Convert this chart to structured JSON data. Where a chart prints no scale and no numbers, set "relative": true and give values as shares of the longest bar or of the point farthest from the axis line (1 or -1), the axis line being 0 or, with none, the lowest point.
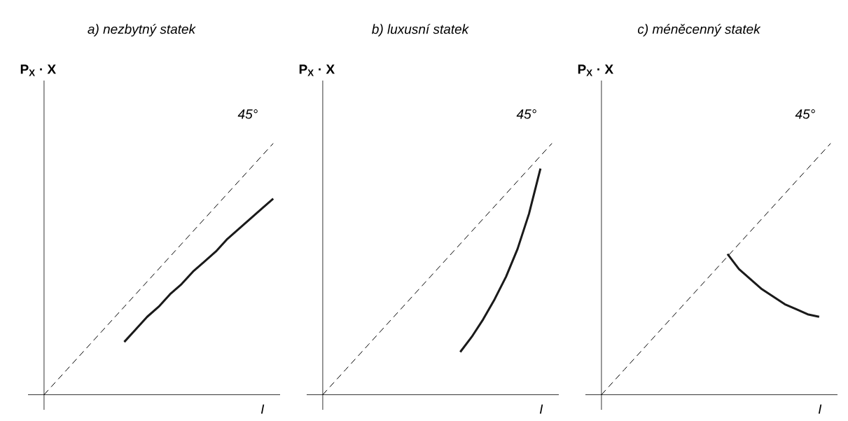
{
  "chart_data": [
    {
      "type": "line",
      "title": "a) nezbytný statek",
      "xlabel": "I",
      "ylabel": "P$_{X}$ · X",
      "relative": true,
      "categories": [
        null,
        null,
        null,
        null,
        null,
        null,
        null,
        null,
        null,
        null,
        null,
        null,
        null,
        null,
        null,
        null,
        null,
        null,
        null,
        null,
        null
      ],
      "series": [
        {
          "color": "#000000",
          "line_style": "dashed",
          "values": [
            0,
            0.05,
            0.1,
            0.15,
            0.2,
            0.25,
            0.3,
            0.35,
            0.4,
            0.45,
            0.5,
            0.55,
            0.6,
            0.65,
            0.7,
            0.75,
            0.8,
            0.85,
            0.9,
            0.95,
            1
          ]
        },
        {
          "color": "#1a1a1a",
          "line_style": "solid",
          "values": [
            null,
            null,
            null,
            null,
            null,
            null,
            null,
            0.21,
            0.26,
            0.31,
            0.35,
            0.4,
            0.44,
            0.49,
            0.53,
            0.57,
            0.62,
            0.66,
            0.7,
            0.74,
            0.78
          ]
        }
      ],
      "annotations": [
        "45°"
      ]
    },
    {
      "type": "line",
      "title": "b) luxusní statek",
      "xlabel": "I",
      "ylabel": "P$_{X}$ · X",
      "relative": true,
      "categories": [
        null,
        null,
        null,
        null,
        null,
        null,
        null,
        null,
        null,
        null,
        null,
        null,
        null,
        null,
        null,
        null,
        null,
        null,
        null,
        null,
        null
      ],
      "series": [
        {
          "color": "#000000",
          "line_style": "dashed",
          "values": [
            0,
            0.05,
            0.1,
            0.15,
            0.2,
            0.25,
            0.3,
            0.35,
            0.4,
            0.45,
            0.5,
            0.55,
            0.6,
            0.65,
            0.7,
            0.75,
            0.8,
            0.85,
            0.9,
            0.95,
            1
          ]
        },
        {
          "color": "#1a1a1a",
          "line_style": "solid",
          "values": [
            null,
            null,
            null,
            null,
            null,
            null,
            null,
            null,
            null,
            null,
            null,
            null,
            0.17,
            0.23,
            0.3,
            0.38,
            0.47,
            0.58,
            0.72,
            0.9,
            null
          ]
        }
      ],
      "annotations": [
        "45°"
      ]
    },
    {
      "type": "line",
      "title": "c) méněcenný statek",
      "xlabel": "I",
      "ylabel": "P$_{X}$ · X",
      "relative": true,
      "categories": [
        null,
        null,
        null,
        null,
        null,
        null,
        null,
        null,
        null,
        null,
        null,
        null,
        null,
        null,
        null,
        null,
        null,
        null,
        null,
        null,
        null
      ],
      "series": [
        {
          "color": "#000000",
          "line_style": "dashed",
          "values": [
            0,
            0.05,
            0.1,
            0.15,
            0.2,
            0.25,
            0.3,
            0.35,
            0.4,
            0.45,
            0.5,
            0.55,
            0.6,
            0.65,
            0.7,
            0.75,
            0.8,
            0.85,
            0.9,
            0.95,
            1
          ]
        },
        {
          "color": "#1a1a1a",
          "line_style": "solid",
          "values": [
            null,
            null,
            null,
            null,
            null,
            null,
            null,
            null,
            null,
            null,
            null,
            0.56,
            0.5,
            0.46,
            0.42,
            0.39,
            0.36,
            0.34,
            0.32,
            0.31,
            null
          ]
        }
      ],
      "annotations": [
        "45°"
      ]
    }
  ]
}
